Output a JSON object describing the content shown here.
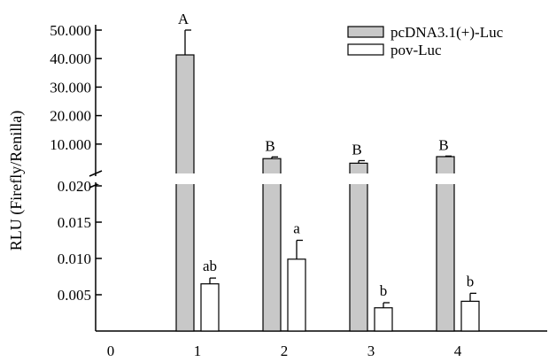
{
  "chart_data": {
    "type": "bar",
    "ylabel": "RLU (Firefly/Renilla)",
    "x_ticks": [
      "0",
      "1",
      "2",
      "3",
      "4"
    ],
    "categories": [
      "1",
      "2",
      "3",
      "4"
    ],
    "axis_break": true,
    "upper_axis": {
      "ticks": [
        "10.000",
        "20.000",
        "30.000",
        "40.000",
        "50.000"
      ],
      "ylim": [
        0,
        50
      ]
    },
    "lower_axis": {
      "ticks": [
        "0.005",
        "0.010",
        "0.015",
        "0.020"
      ],
      "ylim": [
        0,
        0.02
      ]
    },
    "legend_position": "top-right",
    "series": [
      {
        "name": "pcDNA3.1(+)-Luc",
        "color": "#c8c8c8",
        "values": [
          41.3,
          4.9,
          3.3,
          5.6
        ],
        "errors": [
          8.7,
          0.6,
          0.9,
          0.2
        ],
        "labels": [
          "A",
          "B",
          "B",
          "B"
        ]
      },
      {
        "name": "pov-Luc",
        "color": "#ffffff",
        "values": [
          0.0065,
          0.0099,
          0.0032,
          0.0041
        ],
        "errors": [
          0.0008,
          0.0026,
          0.0007,
          0.0011
        ],
        "labels": [
          "ab",
          "a",
          "b",
          "b"
        ]
      }
    ]
  }
}
